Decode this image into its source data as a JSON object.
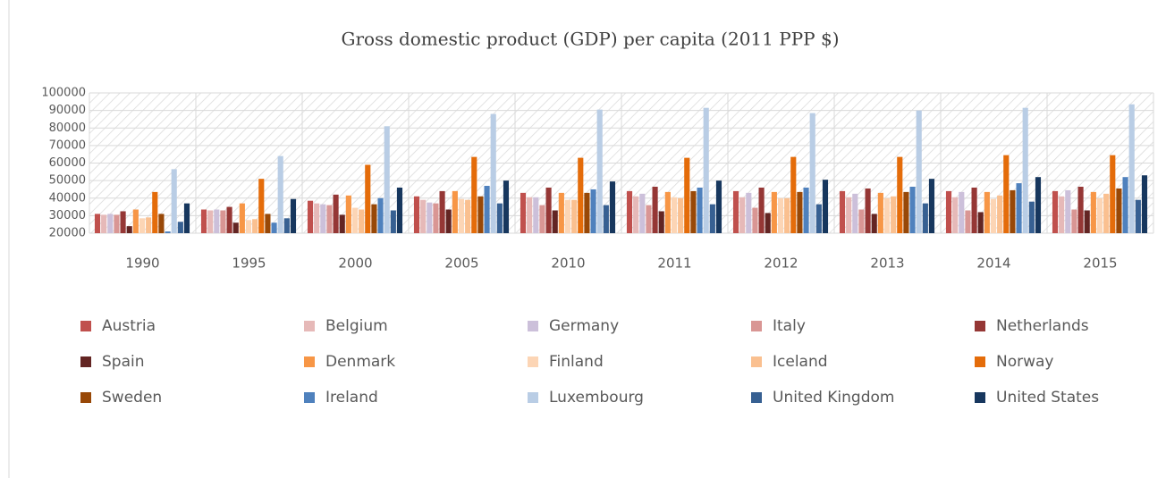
{
  "chart_data": {
    "type": "bar",
    "title": "Gross domestic product (GDP) per capita (2011 PPP $)",
    "categories": [
      "1990",
      "1995",
      "2000",
      "2005",
      "2010",
      "2011",
      "2012",
      "2013",
      "2014",
      "2015"
    ],
    "ylim": [
      20000,
      100000
    ],
    "yticks": [
      20000,
      30000,
      40000,
      50000,
      60000,
      70000,
      80000,
      90000,
      100000
    ],
    "grid": true,
    "legend": "bottom",
    "series": [
      {
        "name": "Austria",
        "color": "#c0504d",
        "values": [
          31000,
          33500,
          38500,
          41000,
          43000,
          44000,
          44000,
          44000,
          44000,
          44000
        ]
      },
      {
        "name": "Belgium",
        "color": "#e6b9b8",
        "values": [
          30500,
          33000,
          37000,
          39000,
          40500,
          41000,
          40500,
          40500,
          40500,
          41000
        ]
      },
      {
        "name": "Germany",
        "color": "#ccc0da",
        "values": [
          31000,
          33500,
          36500,
          37500,
          40500,
          42500,
          43000,
          42500,
          43500,
          44500
        ]
      },
      {
        "name": "Italy",
        "color": "#d99694",
        "values": [
          30500,
          33000,
          36000,
          37000,
          36000,
          36000,
          34500,
          33500,
          33000,
          33500
        ]
      },
      {
        "name": "Netherlands",
        "color": "#953735",
        "values": [
          32500,
          35000,
          42000,
          44000,
          46000,
          46500,
          46000,
          45500,
          46000,
          46500
        ]
      },
      {
        "name": "Spain",
        "color": "#632523",
        "values": [
          24000,
          26000,
          30500,
          33500,
          33000,
          32500,
          31500,
          31000,
          32000,
          33000
        ]
      },
      {
        "name": "Denmark",
        "color": "#f79646",
        "values": [
          33500,
          37000,
          41500,
          44000,
          43000,
          43500,
          43500,
          43000,
          43500,
          43500
        ]
      },
      {
        "name": "Finland",
        "color": "#fcd5b5",
        "values": [
          28500,
          27500,
          34500,
          39500,
          39000,
          40500,
          40000,
          40000,
          39500,
          40000
        ]
      },
      {
        "name": "Iceland",
        "color": "#fac090",
        "values": [
          29000,
          28000,
          33500,
          39000,
          39000,
          40000,
          40000,
          41000,
          41500,
          42500
        ]
      },
      {
        "name": "Norway",
        "color": "#e46c0a",
        "values": [
          43500,
          51000,
          59000,
          63500,
          63000,
          63000,
          63500,
          63500,
          64500,
          64500
        ]
      },
      {
        "name": "Sweden",
        "color": "#984807",
        "values": [
          31000,
          31000,
          36500,
          41000,
          43000,
          44000,
          43500,
          43500,
          44500,
          45500
        ]
      },
      {
        "name": "Ireland",
        "color": "#4f81bd",
        "values": [
          21000,
          26000,
          40000,
          47000,
          45000,
          46000,
          46000,
          46500,
          48500,
          52000
        ]
      },
      {
        "name": "Luxembourg",
        "color": "#b9cde5",
        "values": [
          56500,
          64000,
          81000,
          88000,
          90500,
          91500,
          88500,
          90000,
          91500,
          93500
        ]
      },
      {
        "name": "United Kingdom",
        "color": "#376092",
        "values": [
          26500,
          28500,
          33000,
          37000,
          36000,
          36500,
          36500,
          37000,
          38000,
          39000
        ]
      },
      {
        "name": "United States",
        "color": "#17375e",
        "values": [
          37000,
          39500,
          46000,
          50000,
          49500,
          50000,
          50500,
          51000,
          52000,
          53000
        ]
      }
    ]
  }
}
